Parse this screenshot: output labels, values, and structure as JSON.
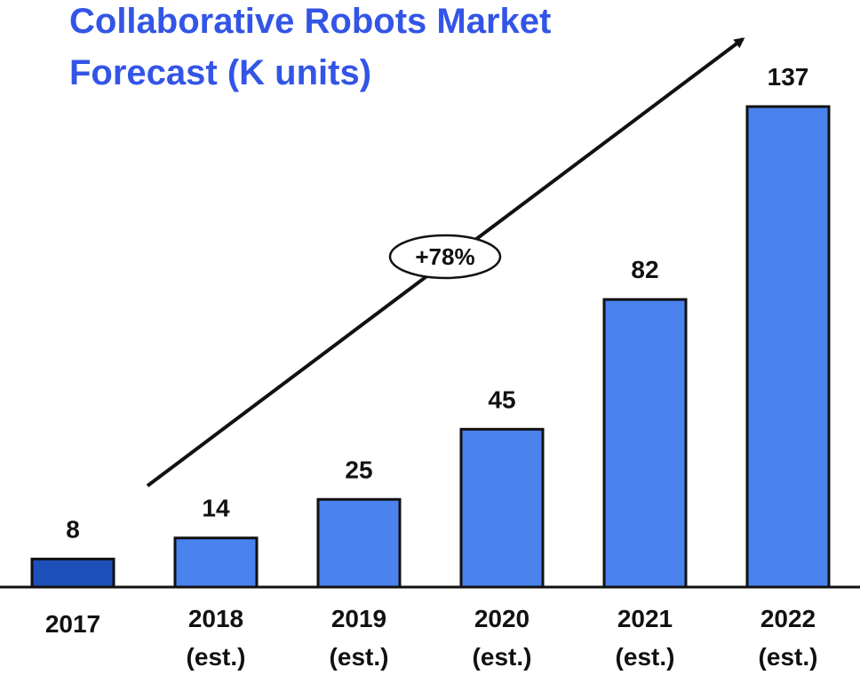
{
  "chart_data": {
    "type": "bar",
    "title_lines": [
      "Collaborative Robots Market",
      "Forecast  (K units)"
    ],
    "categories": [
      {
        "line1": "2017",
        "line2": ""
      },
      {
        "line1": "2018",
        "line2": "(est.)"
      },
      {
        "line1": "2019",
        "line2": "(est.)"
      },
      {
        "line1": "2020",
        "line2": "(est.)"
      },
      {
        "line1": "2021",
        "line2": "(est.)"
      },
      {
        "line1": "2022",
        "line2": "(est.)"
      }
    ],
    "values": [
      8,
      14,
      25,
      45,
      82,
      137
    ],
    "value_labels": [
      "8",
      "14",
      "25",
      "45",
      "82",
      "137"
    ],
    "annotation": "+78%",
    "grid": false,
    "ylim": [
      0,
      140
    ],
    "colors": {
      "title": "#3355e6",
      "bar": "#4a82ee",
      "bar_first": "#1f4fb8",
      "bar_stroke": "#111111",
      "text": "#111111"
    }
  }
}
